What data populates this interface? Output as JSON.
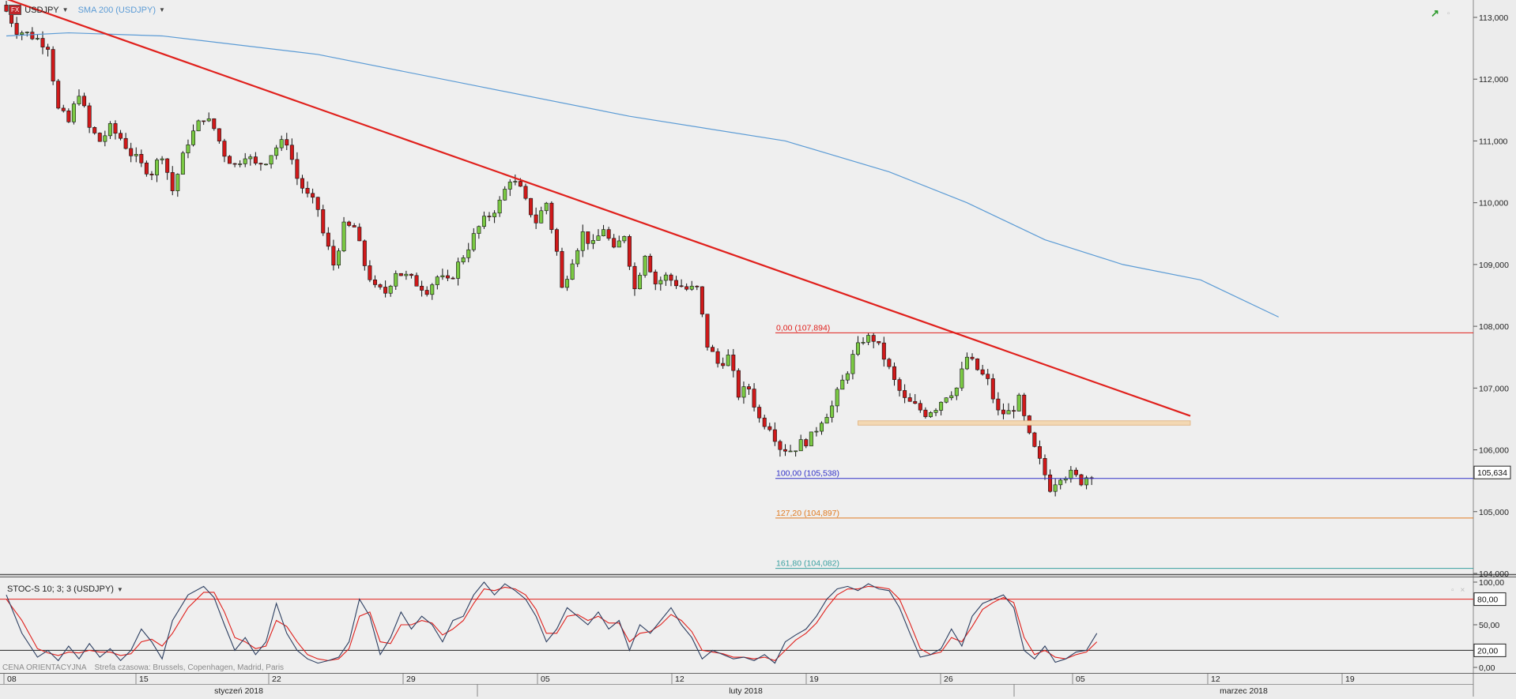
{
  "header": {
    "symbol": "USDJPY",
    "indicator": "SMA 200 (USDJPY)",
    "fx_badge": "FX"
  },
  "stoch_header": {
    "label": "STOC-S 10; 3; 3 (USDJPY)"
  },
  "footer": {
    "price_type": "CENA ORIENTACYJNA",
    "timezone": "Strefa czasowa: Brussels, Copenhagen, Madrid, Paris"
  },
  "colors": {
    "up": "#7ac943",
    "down": "#d0191a",
    "sma": "#5b9bd5",
    "trend": "#e0201c",
    "fib0": "#e0201c",
    "fib100": "#3030c8",
    "fib127": "#e07a20",
    "fib161": "#3aa0a0",
    "zone": "#f3d8b3",
    "stoch_k": "#2c3e60",
    "stoch_d": "#e0201c"
  },
  "chart_data": [
    {
      "type": "candlestick",
      "symbol": "USDJPY",
      "y_axis": {
        "ylim": [
          104.0,
          113.3
        ],
        "ticks": [
          "113,000",
          "112,000",
          "111,000",
          "110,000",
          "109,000",
          "108,000",
          "107,000",
          "106,000",
          "105,000",
          "104,000"
        ],
        "tick_values": [
          113,
          112,
          111,
          110,
          109,
          108,
          107,
          106,
          105,
          104
        ]
      },
      "x_axis": {
        "day_labels": [
          "08",
          "15",
          "22",
          "29",
          "05",
          "12",
          "19",
          "26",
          "05",
          "12",
          "19"
        ],
        "month_labels": [
          "styczeń 2018",
          "luty 2018",
          "marzec 2018"
        ]
      },
      "sma_200": {
        "name": "SMA 200 (USDJPY)",
        "points": [
          [
            0,
            112.7
          ],
          [
            12,
            112.75
          ],
          [
            30,
            112.7
          ],
          [
            60,
            112.4
          ],
          [
            90,
            111.9
          ],
          [
            120,
            111.4
          ],
          [
            150,
            111.0
          ],
          [
            170,
            110.5
          ],
          [
            185,
            110.0
          ],
          [
            200,
            109.4
          ],
          [
            215,
            109.0
          ],
          [
            230,
            108.75
          ],
          [
            245,
            108.15
          ]
        ]
      },
      "trendline": {
        "from": [
          0,
          113.3
        ],
        "to": [
          228,
          106.55
        ]
      },
      "fibonacci": [
        {
          "label": "0,00 (107,894)",
          "value": 107.894
        },
        {
          "label": "100,00 (105,538)",
          "value": 105.538
        },
        {
          "label": "127,20 (104,897)",
          "value": 104.897
        },
        {
          "label": "161,80 (104,082)",
          "value": 104.082
        }
      ],
      "support_zone": {
        "from_x": 164,
        "to_x": 228,
        "low": 106.4,
        "high": 106.47
      },
      "last_price": "105,634",
      "close_path": [
        [
          0,
          113.1
        ],
        [
          2,
          112.8
        ],
        [
          5,
          112.7
        ],
        [
          8,
          112.55
        ],
        [
          10,
          111.5
        ],
        [
          12,
          111.3
        ],
        [
          14,
          111.8
        ],
        [
          16,
          111.2
        ],
        [
          18,
          111.0
        ],
        [
          20,
          111.2
        ],
        [
          22,
          111.05
        ],
        [
          24,
          110.8
        ],
        [
          26,
          110.6
        ],
        [
          28,
          110.5
        ],
        [
          30,
          110.8
        ],
        [
          32,
          110.2
        ],
        [
          35,
          111.0
        ],
        [
          38,
          111.4
        ],
        [
          40,
          111.2
        ],
        [
          42,
          110.8
        ],
        [
          44,
          110.6
        ],
        [
          46,
          110.8
        ],
        [
          48,
          110.6
        ],
        [
          50,
          110.7
        ],
        [
          52,
          110.9
        ],
        [
          54,
          111.0
        ],
        [
          56,
          110.4
        ],
        [
          58,
          110.1
        ],
        [
          60,
          109.9
        ],
        [
          61,
          109.5
        ],
        [
          63,
          109.0
        ],
        [
          65,
          109.6
        ],
        [
          67,
          109.6
        ],
        [
          69,
          109.0
        ],
        [
          71,
          108.6
        ],
        [
          73,
          108.55
        ],
        [
          75,
          108.9
        ],
        [
          77,
          108.8
        ],
        [
          79,
          108.7
        ],
        [
          81,
          108.6
        ],
        [
          83,
          108.8
        ],
        [
          85,
          108.7
        ],
        [
          87,
          109.0
        ],
        [
          89,
          109.3
        ],
        [
          91,
          109.6
        ],
        [
          93,
          109.8
        ],
        [
          95,
          110.0
        ],
        [
          97,
          110.4
        ],
        [
          99,
          110.2
        ],
        [
          100,
          110.0
        ],
        [
          102,
          109.7
        ],
        [
          104,
          110.0
        ],
        [
          106,
          109.2
        ],
        [
          107,
          108.6
        ],
        [
          109,
          109.1
        ],
        [
          111,
          109.5
        ],
        [
          113,
          109.3
        ],
        [
          115,
          109.6
        ],
        [
          117,
          109.2
        ],
        [
          119,
          109.5
        ],
        [
          121,
          108.6
        ],
        [
          123,
          109.2
        ],
        [
          125,
          108.7
        ],
        [
          127,
          108.8
        ],
        [
          129,
          108.7
        ],
        [
          131,
          108.6
        ],
        [
          133,
          108.6
        ],
        [
          135,
          107.7
        ],
        [
          137,
          107.4
        ],
        [
          139,
          107.5
        ],
        [
          141,
          106.9
        ],
        [
          143,
          107.0
        ],
        [
          145,
          106.5
        ],
        [
          147,
          106.4
        ],
        [
          149,
          106.05
        ],
        [
          151,
          106.0
        ],
        [
          153,
          106.1
        ],
        [
          155,
          106.2
        ],
        [
          157,
          106.5
        ],
        [
          159,
          106.7
        ],
        [
          161,
          107.1
        ],
        [
          163,
          107.5
        ],
        [
          165,
          107.8
        ],
        [
          167,
          107.8
        ],
        [
          169,
          107.5
        ],
        [
          171,
          107.1
        ],
        [
          173,
          106.8
        ],
        [
          175,
          106.7
        ],
        [
          177,
          106.6
        ],
        [
          179,
          106.7
        ],
        [
          181,
          106.9
        ],
        [
          183,
          107.0
        ],
        [
          185,
          107.5
        ],
        [
          187,
          107.3
        ],
        [
          189,
          107.1
        ],
        [
          191,
          106.6
        ],
        [
          193,
          106.6
        ],
        [
          195,
          106.8
        ],
        [
          197,
          106.2
        ],
        [
          199,
          105.8
        ],
        [
          201,
          105.4
        ],
        [
          203,
          105.6
        ],
        [
          205,
          105.6
        ],
        [
          207,
          105.5
        ],
        [
          209,
          105.634
        ]
      ]
    },
    {
      "type": "line",
      "name": "STOC-S 10; 3; 3 (USDJPY)",
      "y_axis": {
        "ylim": [
          0,
          100
        ],
        "ticks": [
          "100,00",
          "50,00",
          "0,00"
        ],
        "tick_values": [
          100,
          50,
          0
        ]
      },
      "levels": [
        {
          "label": "80,00",
          "value": 80
        },
        {
          "label": "20,00",
          "value": 20
        }
      ],
      "k_points": [
        [
          0,
          85
        ],
        [
          3,
          40
        ],
        [
          6,
          12
        ],
        [
          8,
          20
        ],
        [
          10,
          8
        ],
        [
          12,
          25
        ],
        [
          14,
          10
        ],
        [
          16,
          28
        ],
        [
          18,
          12
        ],
        [
          20,
          22
        ],
        [
          22,
          8
        ],
        [
          24,
          20
        ],
        [
          26,
          45
        ],
        [
          28,
          30
        ],
        [
          30,
          10
        ],
        [
          32,
          55
        ],
        [
          35,
          85
        ],
        [
          38,
          95
        ],
        [
          40,
          82
        ],
        [
          42,
          50
        ],
        [
          44,
          20
        ],
        [
          46,
          35
        ],
        [
          48,
          15
        ],
        [
          50,
          30
        ],
        [
          52,
          75
        ],
        [
          54,
          40
        ],
        [
          56,
          20
        ],
        [
          58,
          10
        ],
        [
          60,
          5
        ],
        [
          62,
          8
        ],
        [
          64,
          12
        ],
        [
          66,
          30
        ],
        [
          68,
          80
        ],
        [
          70,
          60
        ],
        [
          72,
          15
        ],
        [
          74,
          35
        ],
        [
          76,
          65
        ],
        [
          78,
          45
        ],
        [
          80,
          60
        ],
        [
          82,
          50
        ],
        [
          84,
          30
        ],
        [
          86,
          55
        ],
        [
          88,
          60
        ],
        [
          90,
          85
        ],
        [
          92,
          100
        ],
        [
          94,
          85
        ],
        [
          96,
          98
        ],
        [
          98,
          90
        ],
        [
          100,
          80
        ],
        [
          102,
          60
        ],
        [
          104,
          30
        ],
        [
          106,
          45
        ],
        [
          108,
          70
        ],
        [
          110,
          60
        ],
        [
          112,
          50
        ],
        [
          114,
          65
        ],
        [
          116,
          45
        ],
        [
          118,
          55
        ],
        [
          120,
          20
        ],
        [
          122,
          50
        ],
        [
          124,
          40
        ],
        [
          126,
          55
        ],
        [
          128,
          70
        ],
        [
          130,
          50
        ],
        [
          132,
          35
        ],
        [
          134,
          10
        ],
        [
          136,
          20
        ],
        [
          138,
          15
        ],
        [
          140,
          10
        ],
        [
          142,
          12
        ],
        [
          144,
          8
        ],
        [
          146,
          15
        ],
        [
          148,
          5
        ],
        [
          150,
          30
        ],
        [
          152,
          38
        ],
        [
          154,
          45
        ],
        [
          156,
          60
        ],
        [
          158,
          80
        ],
        [
          160,
          92
        ],
        [
          162,
          95
        ],
        [
          164,
          90
        ],
        [
          166,
          98
        ],
        [
          168,
          92
        ],
        [
          170,
          90
        ],
        [
          172,
          70
        ],
        [
          174,
          40
        ],
        [
          176,
          12
        ],
        [
          178,
          15
        ],
        [
          180,
          22
        ],
        [
          182,
          45
        ],
        [
          184,
          25
        ],
        [
          186,
          60
        ],
        [
          188,
          75
        ],
        [
          190,
          80
        ],
        [
          192,
          85
        ],
        [
          194,
          70
        ],
        [
          196,
          20
        ],
        [
          198,
          10
        ],
        [
          200,
          25
        ],
        [
          202,
          6
        ],
        [
          204,
          10
        ],
        [
          206,
          18
        ],
        [
          208,
          20
        ],
        [
          210,
          40
        ]
      ],
      "d_points": [
        [
          0,
          80
        ],
        [
          3,
          55
        ],
        [
          6,
          22
        ],
        [
          8,
          17
        ],
        [
          10,
          14
        ],
        [
          12,
          18
        ],
        [
          14,
          17
        ],
        [
          16,
          20
        ],
        [
          18,
          18
        ],
        [
          20,
          18
        ],
        [
          22,
          14
        ],
        [
          24,
          16
        ],
        [
          26,
          30
        ],
        [
          28,
          33
        ],
        [
          30,
          25
        ],
        [
          32,
          40
        ],
        [
          35,
          70
        ],
        [
          38,
          88
        ],
        [
          40,
          88
        ],
        [
          42,
          65
        ],
        [
          44,
          35
        ],
        [
          46,
          30
        ],
        [
          48,
          22
        ],
        [
          50,
          25
        ],
        [
          52,
          55
        ],
        [
          54,
          48
        ],
        [
          56,
          30
        ],
        [
          58,
          15
        ],
        [
          60,
          10
        ],
        [
          62,
          8
        ],
        [
          64,
          10
        ],
        [
          66,
          22
        ],
        [
          68,
          60
        ],
        [
          70,
          65
        ],
        [
          72,
          30
        ],
        [
          74,
          28
        ],
        [
          76,
          50
        ],
        [
          78,
          50
        ],
        [
          80,
          55
        ],
        [
          82,
          52
        ],
        [
          84,
          38
        ],
        [
          86,
          45
        ],
        [
          88,
          55
        ],
        [
          90,
          75
        ],
        [
          92,
          92
        ],
        [
          94,
          90
        ],
        [
          96,
          94
        ],
        [
          98,
          92
        ],
        [
          100,
          85
        ],
        [
          102,
          68
        ],
        [
          104,
          40
        ],
        [
          106,
          40
        ],
        [
          108,
          60
        ],
        [
          110,
          62
        ],
        [
          112,
          55
        ],
        [
          114,
          60
        ],
        [
          116,
          52
        ],
        [
          118,
          52
        ],
        [
          120,
          30
        ],
        [
          122,
          40
        ],
        [
          124,
          42
        ],
        [
          126,
          50
        ],
        [
          128,
          62
        ],
        [
          130,
          55
        ],
        [
          132,
          42
        ],
        [
          134,
          20
        ],
        [
          136,
          18
        ],
        [
          138,
          16
        ],
        [
          140,
          12
        ],
        [
          142,
          12
        ],
        [
          144,
          10
        ],
        [
          146,
          12
        ],
        [
          148,
          8
        ],
        [
          150,
          20
        ],
        [
          152,
          32
        ],
        [
          154,
          40
        ],
        [
          156,
          52
        ],
        [
          158,
          70
        ],
        [
          160,
          85
        ],
        [
          162,
          92
        ],
        [
          164,
          92
        ],
        [
          166,
          95
        ],
        [
          168,
          94
        ],
        [
          170,
          92
        ],
        [
          172,
          80
        ],
        [
          174,
          52
        ],
        [
          176,
          22
        ],
        [
          178,
          15
        ],
        [
          180,
          18
        ],
        [
          182,
          35
        ],
        [
          184,
          30
        ],
        [
          186,
          48
        ],
        [
          188,
          68
        ],
        [
          190,
          76
        ],
        [
          192,
          82
        ],
        [
          194,
          76
        ],
        [
          196,
          35
        ],
        [
          198,
          15
        ],
        [
          200,
          20
        ],
        [
          202,
          12
        ],
        [
          204,
          10
        ],
        [
          206,
          15
        ],
        [
          208,
          18
        ],
        [
          210,
          30
        ]
      ]
    }
  ]
}
